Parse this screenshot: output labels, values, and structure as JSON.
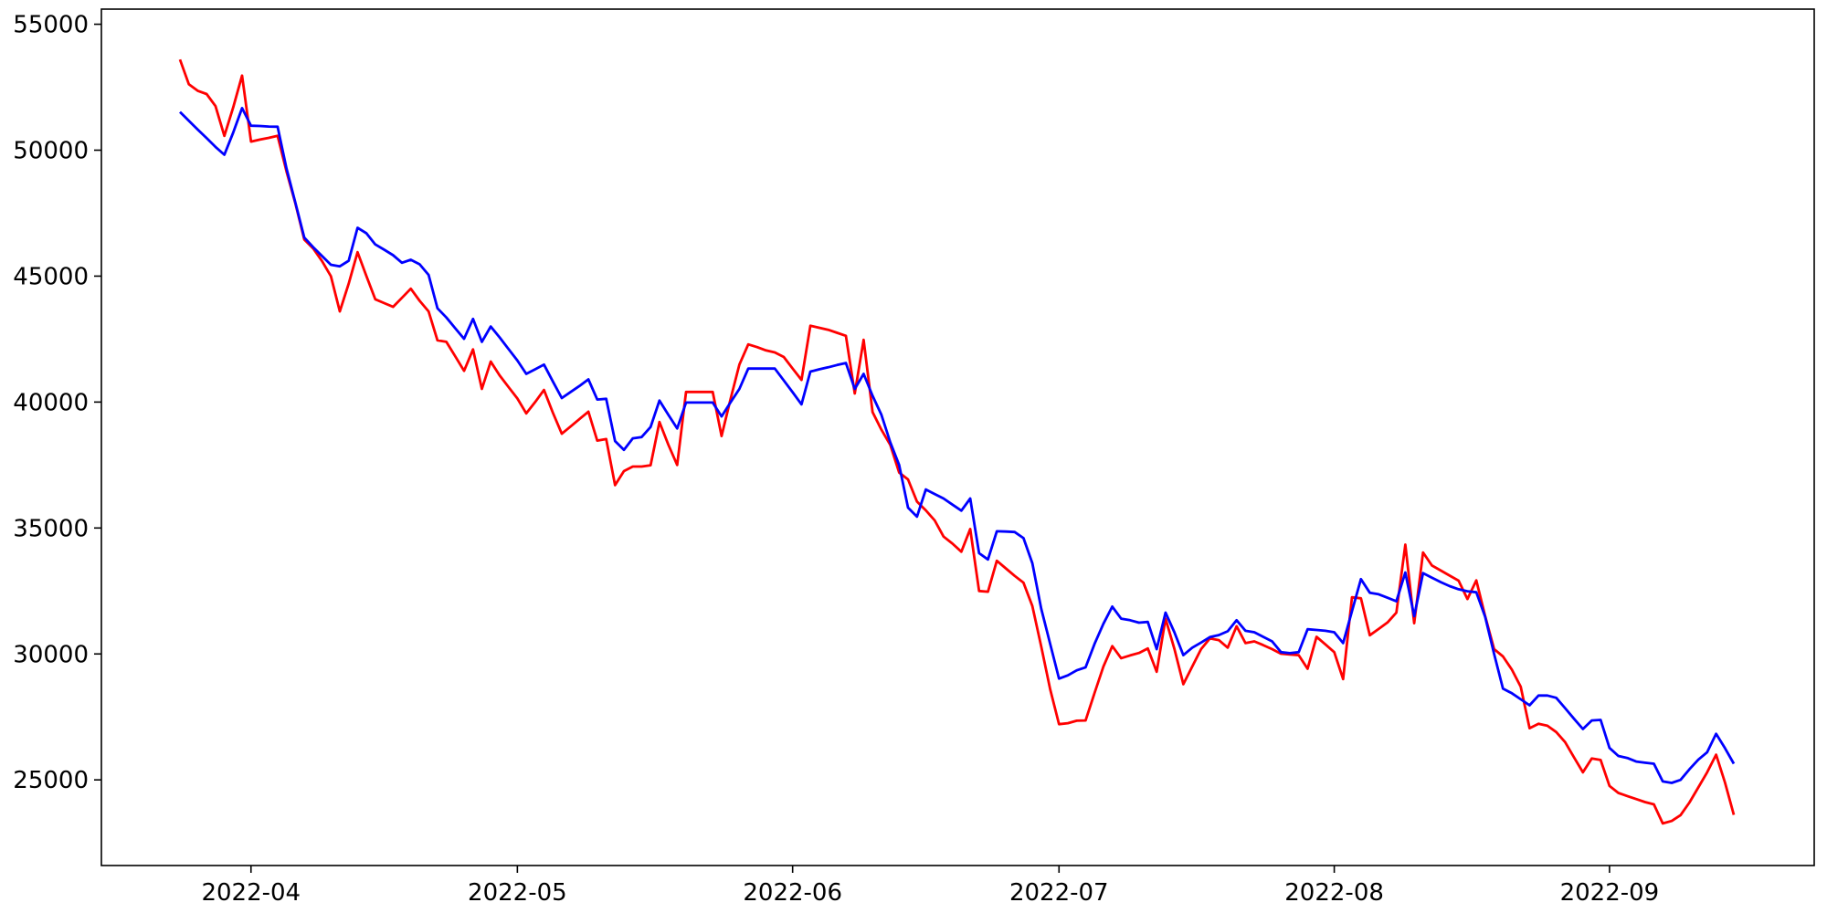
{
  "chart_data": {
    "type": "line",
    "title": "",
    "xlabel": "",
    "ylabel": "",
    "background_color": "#ffffff",
    "axis_color": "#000000",
    "grid": false,
    "legend": "none",
    "x_start_date": "2022-03-24",
    "x_end_date": "2022-09-15",
    "x_frequency": "daily",
    "n_points": 176,
    "ylim": [
      21600,
      55600
    ],
    "yticks": [
      {
        "value": 25000,
        "label": "25000"
      },
      {
        "value": 30000,
        "label": "30000"
      },
      {
        "value": 35000,
        "label": "35000"
      },
      {
        "value": 40000,
        "label": "40000"
      },
      {
        "value": 45000,
        "label": "45000"
      },
      {
        "value": 50000,
        "label": "50000"
      },
      {
        "value": 55000,
        "label": "55000"
      }
    ],
    "xticks": [
      {
        "day_index": 8,
        "label": "2022-04"
      },
      {
        "day_index": 38,
        "label": "2022-05"
      },
      {
        "day_index": 69,
        "label": "2022-06"
      },
      {
        "day_index": 99,
        "label": "2022-07"
      },
      {
        "day_index": 130,
        "label": "2022-08"
      },
      {
        "day_index": 161,
        "label": "2022-09"
      }
    ],
    "series": [
      {
        "name": "red-line",
        "color": "#ff0000",
        "values": [
          53600,
          52620,
          52360,
          52230,
          51750,
          50570,
          51700,
          52960,
          50340,
          50420,
          50490,
          50570,
          49160,
          47880,
          46450,
          46100,
          45600,
          45000,
          43600,
          44700,
          45950,
          45000,
          44080,
          43930,
          43780,
          44140,
          44500,
          44020,
          43600,
          42450,
          42390,
          41820,
          41240,
          42090,
          40520,
          41610,
          41060,
          40600,
          40140,
          39550,
          40000,
          40480,
          39580,
          38740,
          39030,
          39330,
          39620,
          38470,
          38530,
          36700,
          37260,
          37440,
          37440,
          37490,
          39210,
          38310,
          37500,
          40400,
          40400,
          40400,
          40400,
          38650,
          40100,
          41490,
          42290,
          42180,
          42050,
          41970,
          41790,
          41330,
          40880,
          43030,
          42950,
          42870,
          42750,
          42630,
          40340,
          42470,
          39600,
          38900,
          38300,
          37200,
          36930,
          36050,
          35700,
          35300,
          34660,
          34380,
          34060,
          34960,
          32500,
          32470,
          33700,
          33400,
          33100,
          32830,
          31900,
          30300,
          28600,
          27210,
          27250,
          27350,
          27360,
          28450,
          29500,
          30310,
          29830,
          29940,
          30040,
          30220,
          29290,
          31400,
          30200,
          28800,
          29500,
          30190,
          30620,
          30550,
          30250,
          31100,
          30430,
          30500,
          30350,
          30190,
          30010,
          29980,
          29950,
          29410,
          30680,
          30380,
          30070,
          29000,
          32250,
          32210,
          30740,
          30990,
          31250,
          31640,
          34340,
          31220,
          34030,
          33510,
          33310,
          33110,
          32910,
          32180,
          32920,
          31500,
          30190,
          29900,
          29380,
          28700,
          27050,
          27230,
          27150,
          26900,
          26500,
          25900,
          25300,
          25850,
          25790,
          24760,
          24480,
          24360,
          24240,
          24120,
          24030,
          23270,
          23370,
          23600,
          24100,
          24700,
          25300,
          26000,
          24900,
          23610
        ]
      },
      {
        "name": "blue-line",
        "color": "#0000ff",
        "values": [
          51520,
          51170,
          50820,
          50480,
          50130,
          49820,
          50700,
          51670,
          50970,
          50960,
          50940,
          50930,
          49280,
          47910,
          46530,
          46150,
          45800,
          45450,
          45390,
          45610,
          46920,
          46700,
          46260,
          46050,
          45830,
          45530,
          45650,
          45470,
          45050,
          43720,
          43360,
          42930,
          42510,
          43300,
          42390,
          43000,
          42570,
          42110,
          41650,
          41120,
          41300,
          41490,
          40820,
          40160,
          40400,
          40640,
          40900,
          40100,
          40130,
          38450,
          38100,
          38560,
          38610,
          39010,
          40060,
          39500,
          38950,
          39980,
          39980,
          39980,
          39980,
          39430,
          39980,
          40520,
          41330,
          41330,
          41330,
          41330,
          40860,
          40390,
          39910,
          41210,
          41300,
          41380,
          41470,
          41550,
          40520,
          41120,
          40250,
          39490,
          38400,
          37500,
          35810,
          35450,
          36530,
          36350,
          36170,
          35930,
          35690,
          36170,
          34000,
          33750,
          34870,
          34860,
          34840,
          34600,
          33600,
          31800,
          30400,
          29020,
          29150,
          29350,
          29470,
          30400,
          31200,
          31880,
          31400,
          31340,
          31240,
          31270,
          30190,
          31640,
          30860,
          29950,
          30250,
          30450,
          30670,
          30750,
          30900,
          31340,
          30920,
          30860,
          30680,
          30500,
          30070,
          30030,
          30070,
          30980,
          30950,
          30920,
          30860,
          30430,
          31700,
          32970,
          32430,
          32370,
          32230,
          32090,
          33230,
          31500,
          33210,
          33030,
          32850,
          32690,
          32570,
          32490,
          32450,
          31470,
          30000,
          28620,
          28440,
          28200,
          27960,
          28350,
          28350,
          28260,
          27850,
          27430,
          27020,
          27360,
          27380,
          26270,
          25950,
          25870,
          25730,
          25680,
          25640,
          24940,
          24880,
          25000,
          25420,
          25800,
          26100,
          26830,
          26260,
          25640
        ]
      }
    ]
  }
}
